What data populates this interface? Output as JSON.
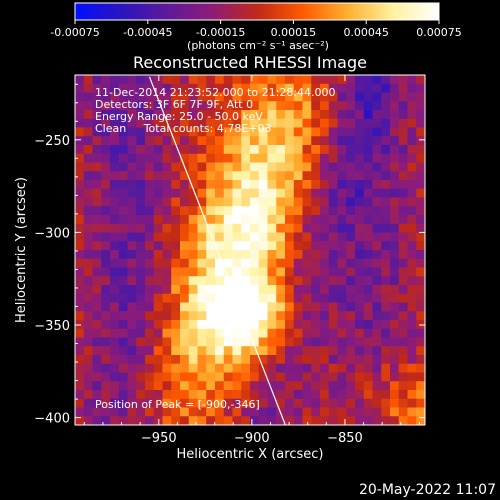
{
  "chart_data": {
    "type": "heatmap",
    "title": "Reconstructed RHESSI Image",
    "xlabel": "Heliocentric X (arcsec)",
    "ylabel": "Heliocentric Y (arcsec)",
    "xlim": [
      -995,
      -807
    ],
    "ylim": [
      -404,
      -215
    ],
    "xticks": [
      -950,
      -900,
      -850
    ],
    "yticks": [
      -250,
      -300,
      -350,
      -400
    ],
    "colorbar": {
      "min": -0.00075,
      "max": 0.00075,
      "ticks": [
        "-0.00075",
        "-0.00045",
        "-0.00015",
        "0.00015",
        "0.00045",
        "0.00075"
      ],
      "unit_label": "(photons cm⁻² s⁻¹ asec⁻²)",
      "palette": [
        "#0010ff",
        "#2a14c0",
        "#5a1a9a",
        "#8c1c7a",
        "#c02818",
        "#ff5a00",
        "#ffb030",
        "#fff2a0",
        "#ffffff"
      ]
    },
    "annotations": [
      "11-Dec-2014 21:23:52.000 to 21:28:44.000",
      "Detectors: 3F 6F 7F 9F, Att 0",
      "Energy Range: 25.0 - 50.0 keV",
      "Clean     Total counts: 4.78E+03"
    ],
    "peak_label": "Position of Peak = [-900,-346]",
    "peak": {
      "x": -900,
      "y": -346
    },
    "limb": {
      "x1": -955,
      "y1": -216,
      "x2": -882,
      "y2": -404
    }
  },
  "footer": {
    "timestamp": "20-May-2022 11:07"
  }
}
